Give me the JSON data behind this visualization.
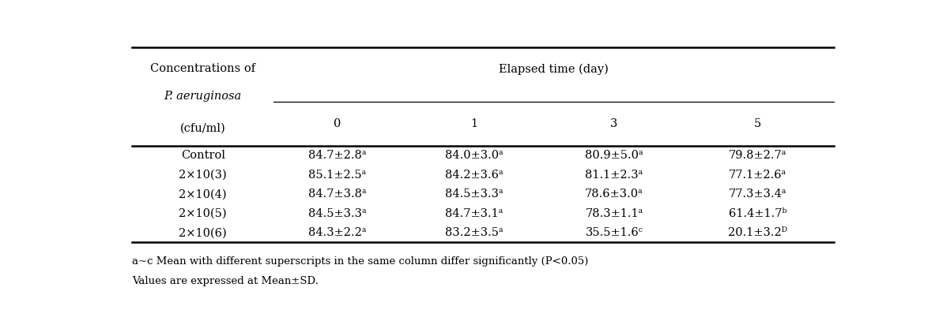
{
  "col_header_main": "Elapsed time (day)",
  "col_header_sub": [
    "0",
    "1",
    "3",
    "5"
  ],
  "row_header_title_line1": "Concentrations of",
  "row_header_title_line2": "P. aeruginosa",
  "row_header_title_line3": "(cfu/ml)",
  "rows": [
    {
      "label": "Control",
      "values": [
        "84.7±2.8ᵃ",
        "84.0±3.0ᵃ",
        "80.9±5.0ᵃ",
        "79.8±2.7ᵃ"
      ]
    },
    {
      "label": "2×10(3)",
      "values": [
        "85.1±2.5ᵃ",
        "84.2±3.6ᵃ",
        "81.1±2.3ᵃ",
        "77.1±2.6ᵃ"
      ]
    },
    {
      "label": "2×10(4)",
      "values": [
        "84.7±3.8ᵃ",
        "84.5±3.3ᵃ",
        "78.6±3.0ᵃ",
        "77.3±3.4ᵃ"
      ]
    },
    {
      "label": "2×10(5)",
      "values": [
        "84.5±3.3ᵃ",
        "84.7±3.1ᵃ",
        "78.3±1.1ᵃ",
        "61.4±1.7ᵇ"
      ]
    },
    {
      "label": "2×10(6)",
      "values": [
        "84.3±2.2ᵃ",
        "83.2±3.5ᵃ",
        "35.5±1.6ᶜ",
        "20.1±3.2ᴰ"
      ]
    }
  ],
  "footnote_line1": "a~c Mean with different superscripts in the same column differ significantly (P<0.05)",
  "footnote_line2": "Values are expressed at Mean±SD.",
  "bg_color": "white",
  "text_color": "black",
  "font_size": 10.5
}
